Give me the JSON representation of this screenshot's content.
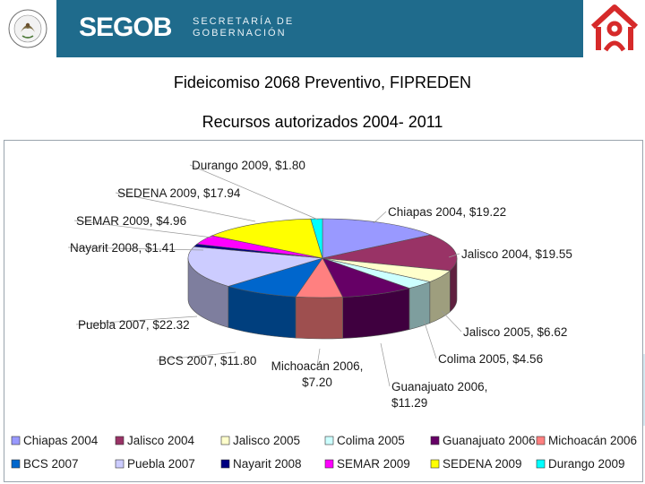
{
  "header": {
    "brand": "SEGOB",
    "brand_sub": "SECRETARÍA DE\nGOBERNACIÓN",
    "seal_text": "ESTADOS UNIDOS MEXICANOS",
    "banner_color": "#1f6b8c",
    "logo_color": "#d62a2a"
  },
  "titles": {
    "line1": "Fideicomiso 2068 Preventivo, FIPREDEN",
    "line2": "Recursos autorizados 2004- 2011"
  },
  "chart_data": {
    "type": "pie",
    "title": "Fideicomiso 2068 Preventivo, FIPREDEN — Recursos autorizados 2004- 2011",
    "categories": [
      "Chiapas 2004",
      "Jalisco 2004",
      "Jalisco 2005",
      "Colima 2005",
      "Guanajuato 2006",
      "Michoacán 2006",
      "BCS 2007",
      "Puebla 2007",
      "Nayarit 2008",
      "SEMAR 2009",
      "SEDENA 2009",
      "Durango 2009"
    ],
    "values": [
      19.22,
      19.55,
      6.62,
      4.56,
      11.29,
      7.2,
      11.8,
      22.32,
      1.41,
      4.96,
      17.94,
      1.8
    ],
    "labels": [
      "Chiapas 2004,  $19.22",
      "Jalisco 2004,  $19.55",
      "Jalisco 2005,  $6.62",
      "Colima 2005,  $4.56",
      "Guanajuato 2006,\n$11.29",
      "Michoacán 2006,\n$7.20",
      "BCS 2007,  $11.80",
      "Puebla 2007,  $22.32",
      "Nayarit 2008,  $1.41",
      "SEMAR 2009,  $4.96",
      "SEDENA 2009,  $17.94",
      "Durango 2009,  $1.80"
    ],
    "colors": [
      "#9999ff",
      "#993366",
      "#ffffcc",
      "#ccffff",
      "#660066",
      "#ff8080",
      "#0066cc",
      "#ccccff",
      "#000080",
      "#ff00ff",
      "#ffff00",
      "#00ffff"
    ],
    "legend": {
      "position": "bottom"
    }
  }
}
